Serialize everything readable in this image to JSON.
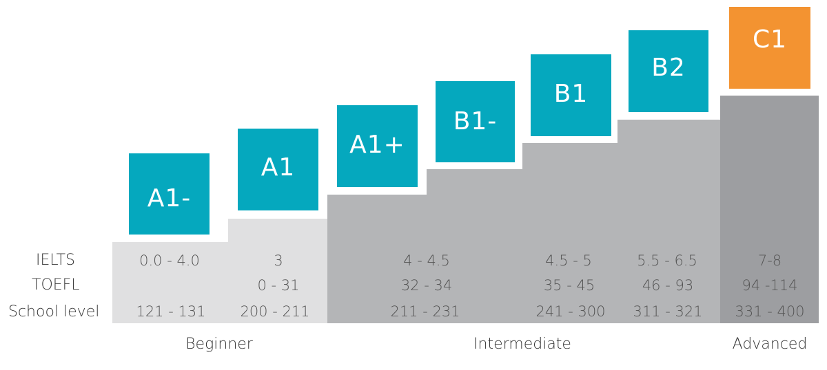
{
  "colors": {
    "teal": "#05a8be",
    "orange": "#f39331",
    "step_light": "#e0e0e1",
    "step_mid": "#b4b5b7",
    "step_dark": "#9d9ea1"
  },
  "row_labels": [
    "IELTS",
    "TOEFL",
    "School level"
  ],
  "levels": [
    {
      "name": "A1-",
      "ielts": "0.0 - 4.0",
      "toefl": "",
      "school": "121 - 131",
      "color": "#05a8be"
    },
    {
      "name": "A1",
      "ielts": "3",
      "toefl": "0 - 31",
      "school": "200 - 211",
      "color": "#05a8be"
    },
    {
      "name": "A1+",
      "ielts": "4 - 4.5",
      "toefl": "32 - 34",
      "school": "211 - 231",
      "color": "#05a8be"
    },
    {
      "name": "B1-",
      "ielts": "",
      "toefl": "",
      "school": "",
      "color": "#05a8be"
    },
    {
      "name": "B1",
      "ielts": "4.5 - 5",
      "toefl": "35 - 45",
      "school": "241 - 300",
      "color": "#05a8be"
    },
    {
      "name": "B2",
      "ielts": "5.5 - 6.5",
      "toefl": "46 - 93",
      "school": "311 - 321",
      "color": "#05a8be"
    },
    {
      "name": "C1",
      "ielts": "7-8",
      "toefl": "94 -114",
      "school": "331 - 400",
      "color": "#f39331"
    }
  ],
  "groups": [
    "Beginner",
    "Intermediate",
    "Advanced"
  ]
}
